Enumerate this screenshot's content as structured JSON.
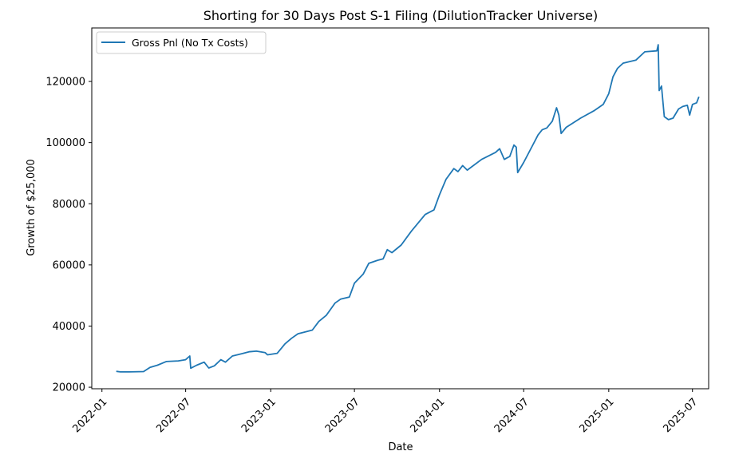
{
  "chart_data": {
    "type": "line",
    "title": "Shorting for 30 Days Post S-1 Filing (DilutionTracker Universe)",
    "xlabel": "Date",
    "ylabel": "Growth of $25,000",
    "xlim": [
      "2021-12-10",
      "2025-08-05"
    ],
    "ylim": [
      19500,
      137500
    ],
    "x_ticks": [
      "2022-01",
      "2022-07",
      "2023-01",
      "2023-07",
      "2024-01",
      "2024-07",
      "2025-01",
      "2025-07"
    ],
    "y_ticks": [
      20000,
      40000,
      60000,
      80000,
      100000,
      120000
    ],
    "legend": {
      "position": "top-left",
      "entries": [
        "Gross Pnl (No Tx Costs)"
      ]
    },
    "colors": {
      "line": "#1f77b4"
    },
    "series": [
      {
        "name": "Gross Pnl (No Tx Costs)",
        "points": [
          [
            "2022-02-01",
            25200
          ],
          [
            "2022-02-10",
            25000
          ],
          [
            "2022-03-01",
            25000
          ],
          [
            "2022-04-01",
            25100
          ],
          [
            "2022-04-15",
            26500
          ],
          [
            "2022-05-01",
            27200
          ],
          [
            "2022-05-20",
            28400
          ],
          [
            "2022-06-15",
            28600
          ],
          [
            "2022-07-01",
            29000
          ],
          [
            "2022-07-10",
            30200
          ],
          [
            "2022-07-12",
            26200
          ],
          [
            "2022-07-25",
            27200
          ],
          [
            "2022-08-10",
            28200
          ],
          [
            "2022-08-20",
            26300
          ],
          [
            "2022-09-01",
            27000
          ],
          [
            "2022-09-15",
            29000
          ],
          [
            "2022-09-25",
            28200
          ],
          [
            "2022-10-10",
            30200
          ],
          [
            "2022-11-01",
            31000
          ],
          [
            "2022-11-15",
            31600
          ],
          [
            "2022-12-01",
            31800
          ],
          [
            "2022-12-20",
            31300
          ],
          [
            "2022-12-25",
            30600
          ],
          [
            "2023-01-15",
            31100
          ],
          [
            "2023-02-01",
            34200
          ],
          [
            "2023-02-15",
            36000
          ],
          [
            "2023-03-01",
            37500
          ],
          [
            "2023-04-01",
            38700
          ],
          [
            "2023-04-15",
            41500
          ],
          [
            "2023-05-01",
            43500
          ],
          [
            "2023-05-20",
            47500
          ],
          [
            "2023-06-01",
            48800
          ],
          [
            "2023-06-20",
            49500
          ],
          [
            "2023-07-01",
            54000
          ],
          [
            "2023-07-20",
            57000
          ],
          [
            "2023-08-01",
            60500
          ],
          [
            "2023-08-20",
            61500
          ],
          [
            "2023-09-01",
            62000
          ],
          [
            "2023-09-10",
            65000
          ],
          [
            "2023-09-20",
            64000
          ],
          [
            "2023-10-10",
            66500
          ],
          [
            "2023-11-01",
            71000
          ],
          [
            "2023-12-01",
            76500
          ],
          [
            "2023-12-20",
            78000
          ],
          [
            "2024-01-01",
            83000
          ],
          [
            "2024-01-15",
            88000
          ],
          [
            "2024-02-01",
            91500
          ],
          [
            "2024-02-10",
            90500
          ],
          [
            "2024-02-20",
            92500
          ],
          [
            "2024-03-01",
            91000
          ],
          [
            "2024-04-01",
            94500
          ],
          [
            "2024-05-01",
            96800
          ],
          [
            "2024-05-10",
            98000
          ],
          [
            "2024-05-20",
            94500
          ],
          [
            "2024-06-01",
            95500
          ],
          [
            "2024-06-10",
            99200
          ],
          [
            "2024-06-15",
            98500
          ],
          [
            "2024-06-18",
            90200
          ],
          [
            "2024-07-01",
            93500
          ],
          [
            "2024-07-20",
            99000
          ],
          [
            "2024-08-01",
            102500
          ],
          [
            "2024-08-10",
            104200
          ],
          [
            "2024-08-20",
            104800
          ],
          [
            "2024-09-01",
            107000
          ],
          [
            "2024-09-10",
            111400
          ],
          [
            "2024-09-15",
            109000
          ],
          [
            "2024-09-20",
            103000
          ],
          [
            "2024-10-01",
            105000
          ],
          [
            "2024-11-01",
            108000
          ],
          [
            "2024-12-01",
            110500
          ],
          [
            "2024-12-20",
            112500
          ],
          [
            "2025-01-01",
            116000
          ],
          [
            "2025-01-10",
            121500
          ],
          [
            "2025-01-20",
            124300
          ],
          [
            "2025-02-01",
            126000
          ],
          [
            "2025-03-01",
            127000
          ],
          [
            "2025-03-20",
            129700
          ],
          [
            "2025-04-15",
            130000
          ],
          [
            "2025-04-18",
            132000
          ],
          [
            "2025-04-20",
            117000
          ],
          [
            "2025-04-25",
            118500
          ],
          [
            "2025-05-01",
            108500
          ],
          [
            "2025-05-10",
            107500
          ],
          [
            "2025-05-20",
            108000
          ],
          [
            "2025-06-01",
            111000
          ],
          [
            "2025-06-10",
            111800
          ],
          [
            "2025-06-20",
            112200
          ],
          [
            "2025-06-25",
            109000
          ],
          [
            "2025-07-01",
            112500
          ],
          [
            "2025-07-10",
            113000
          ],
          [
            "2025-07-15",
            115000
          ]
        ]
      }
    ]
  }
}
